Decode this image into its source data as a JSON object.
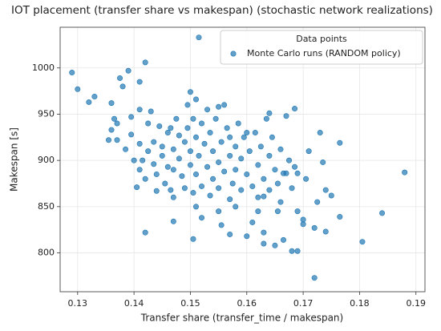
{
  "chart_data": {
    "type": "scatter",
    "title": "IOT placement (transfer share vs makespan) (stochastic network realizations)",
    "x_label": "Transfer share (transfer_time / makespan)",
    "y_label": "Makespan [s]",
    "legend_title": "Data points",
    "legend_position": "upper right",
    "grid": true,
    "xlim": [
      0.1269,
      0.1916
    ],
    "ylim": [
      758,
      1044
    ],
    "xticks": [
      0.13,
      0.14,
      0.15,
      0.16,
      0.17,
      0.18,
      0.19
    ],
    "yticks": [
      800,
      850,
      900,
      950,
      1000
    ],
    "x": [
      0.129,
      0.13,
      0.132,
      0.133,
      0.1355,
      0.136,
      0.136,
      0.137,
      0.137,
      0.1375,
      0.138,
      0.139,
      0.141,
      0.142,
      0.1515,
      0.142,
      0.147,
      0.1505,
      0.152,
      0.157,
      0.16,
      0.163,
      0.163,
      0.165,
      0.1665,
      0.168,
      0.169,
      0.17,
      0.17,
      0.172,
      0.172,
      0.174,
      0.1765,
      0.1805,
      0.184,
      0.188,
      0.1765,
      0.173,
      0.1735,
      0.174,
      0.175,
      0.1725,
      0.1685,
      0.167,
      0.164,
      0.16,
      0.156,
      0.155,
      0.15,
      0.151,
      0.153,
      0.157,
      0.1405,
      0.141,
      0.141,
      0.1415,
      0.141,
      0.142,
      0.1425,
      0.1425,
      0.143,
      0.1435,
      0.1435,
      0.144,
      0.144,
      0.1445,
      0.145,
      0.145,
      0.1455,
      0.146,
      0.146,
      0.1465,
      0.1465,
      0.147,
      0.147,
      0.1475,
      0.148,
      0.148,
      0.1485,
      0.149,
      0.149,
      0.1495,
      0.1495,
      0.15,
      0.15,
      0.1505,
      0.1505,
      0.151,
      0.151,
      0.1515,
      0.152,
      0.152,
      0.1525,
      0.153,
      0.1535,
      0.1535,
      0.154,
      0.154,
      0.1545,
      0.155,
      0.155,
      0.1555,
      0.156,
      0.1565,
      0.157,
      0.157,
      0.1575,
      0.158,
      0.158,
      0.1585,
      0.159,
      0.159,
      0.1595,
      0.16,
      0.1605,
      0.161,
      0.1615,
      0.162,
      0.162,
      0.1625,
      0.163,
      0.1635,
      0.164,
      0.164,
      0.1645,
      0.165,
      0.1655,
      0.166,
      0.166,
      0.1665,
      0.167,
      0.1675,
      0.168,
      0.1685,
      0.169,
      0.169,
      0.1705,
      0.171,
      0.1385,
      0.1395,
      0.14,
      0.1395,
      0.1365,
      0.163,
      0.162,
      0.158,
      0.155,
      0.151,
      0.147,
      0.1555,
      0.161,
      0.1655
    ],
    "series": [
      {
        "name": "Monte Carlo runs (RANDOM policy)",
        "color": "#1f77b4",
        "values": [
          995,
          977,
          963,
          969,
          922,
          962,
          933,
          940,
          922,
          989,
          980,
          997,
          985,
          1006,
          1033,
          822,
          834,
          815,
          838,
          820,
          818,
          822,
          810,
          808,
          814,
          802,
          802,
          831,
          836,
          827,
          773,
          823,
          839,
          812,
          843,
          887,
          919,
          930,
          898,
          868,
          862,
          855,
          956,
          948,
          951,
          930,
          960,
          958,
          974,
          966,
          955,
          925,
          871,
          955,
          918,
          900,
          890,
          880,
          910,
          940,
          953,
          920,
          896,
          885,
          867,
          937,
          915,
          905,
          875,
          930,
          893,
          935,
          868,
          912,
          890,
          945,
          927,
          902,
          883,
          920,
          870,
          960,
          935,
          910,
          895,
          945,
          865,
          925,
          885,
          905,
          940,
          872,
          918,
          893,
          930,
          862,
          910,
          880,
          945,
          898,
          870,
          920,
          888,
          935,
          905,
          858,
          875,
          915,
          890,
          940,
          902,
          868,
          925,
          885,
          910,
          872,
          930,
          895,
          860,
          915,
          880,
          945,
          905,
          868,
          925,
          890,
          875,
          912,
          855,
          886,
          886,
          900,
          870,
          893,
          886,
          845,
          880,
          910,
          912,
          928,
          900,
          947,
          945,
          861,
          845,
          850,
          845,
          850,
          860,
          830,
          833,
          845
        ]
      }
    ]
  }
}
